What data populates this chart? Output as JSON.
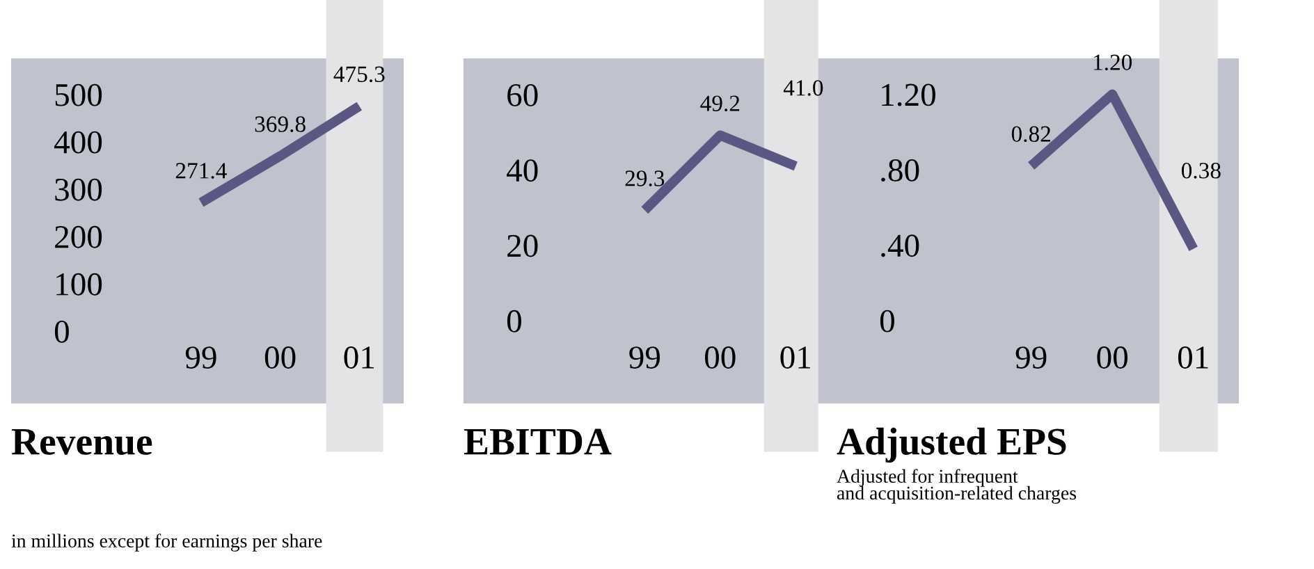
{
  "chart_data": [
    {
      "type": "line",
      "title": "Revenue",
      "categories": [
        "99",
        "00",
        "01"
      ],
      "values": [
        271.4,
        369.8,
        475.3
      ],
      "value_labels": [
        "271.4",
        "369.8",
        "475.3"
      ],
      "color": "#5b5783",
      "ylim": [
        -153,
        576
      ],
      "yticks": [
        0,
        100,
        200,
        300,
        400,
        500
      ],
      "grid": false,
      "bands": [
        {
          "axis": "x",
          "from": "01",
          "to": "01",
          "color": "#e4e4e7"
        }
      ],
      "annotations": [
        "in millions except for earnings per share"
      ]
    },
    {
      "type": "line",
      "title": "EBITDA",
      "categories": [
        "99",
        "00",
        "01"
      ],
      "values": [
        29.3,
        49.2,
        41.0
      ],
      "value_labels": [
        "29.3",
        "49.2",
        "41.0"
      ],
      "color": "#5b5783",
      "ylim": [
        -22,
        69.6
      ],
      "yticks": [
        0,
        20,
        40,
        60
      ],
      "grid": false,
      "bands": [
        {
          "axis": "x",
          "from": "01",
          "to": "01",
          "color": "#e4e4e7"
        }
      ]
    },
    {
      "type": "line",
      "title": "Adjusted EPS",
      "subtitle": "Adjusted for infrequent\nand acquisition-related charges",
      "categories": [
        "99",
        "00",
        "01"
      ],
      "values": [
        0.82,
        1.2,
        0.38
      ],
      "value_labels": [
        "0.82",
        "1.20",
        "0.38"
      ],
      "color": "#5b5783",
      "ylim": [
        -0.44,
        1.39
      ],
      "yticks": [
        0,
        {
          "value": 0.4,
          "label": ".40"
        },
        {
          "value": 0.8,
          "label": ".80"
        },
        {
          "value": 1.2,
          "label": "1.20"
        }
      ],
      "grid": false,
      "bands": [
        {
          "axis": "x",
          "from": "01",
          "to": "01",
          "color": "#e4e4e7"
        }
      ]
    }
  ]
}
